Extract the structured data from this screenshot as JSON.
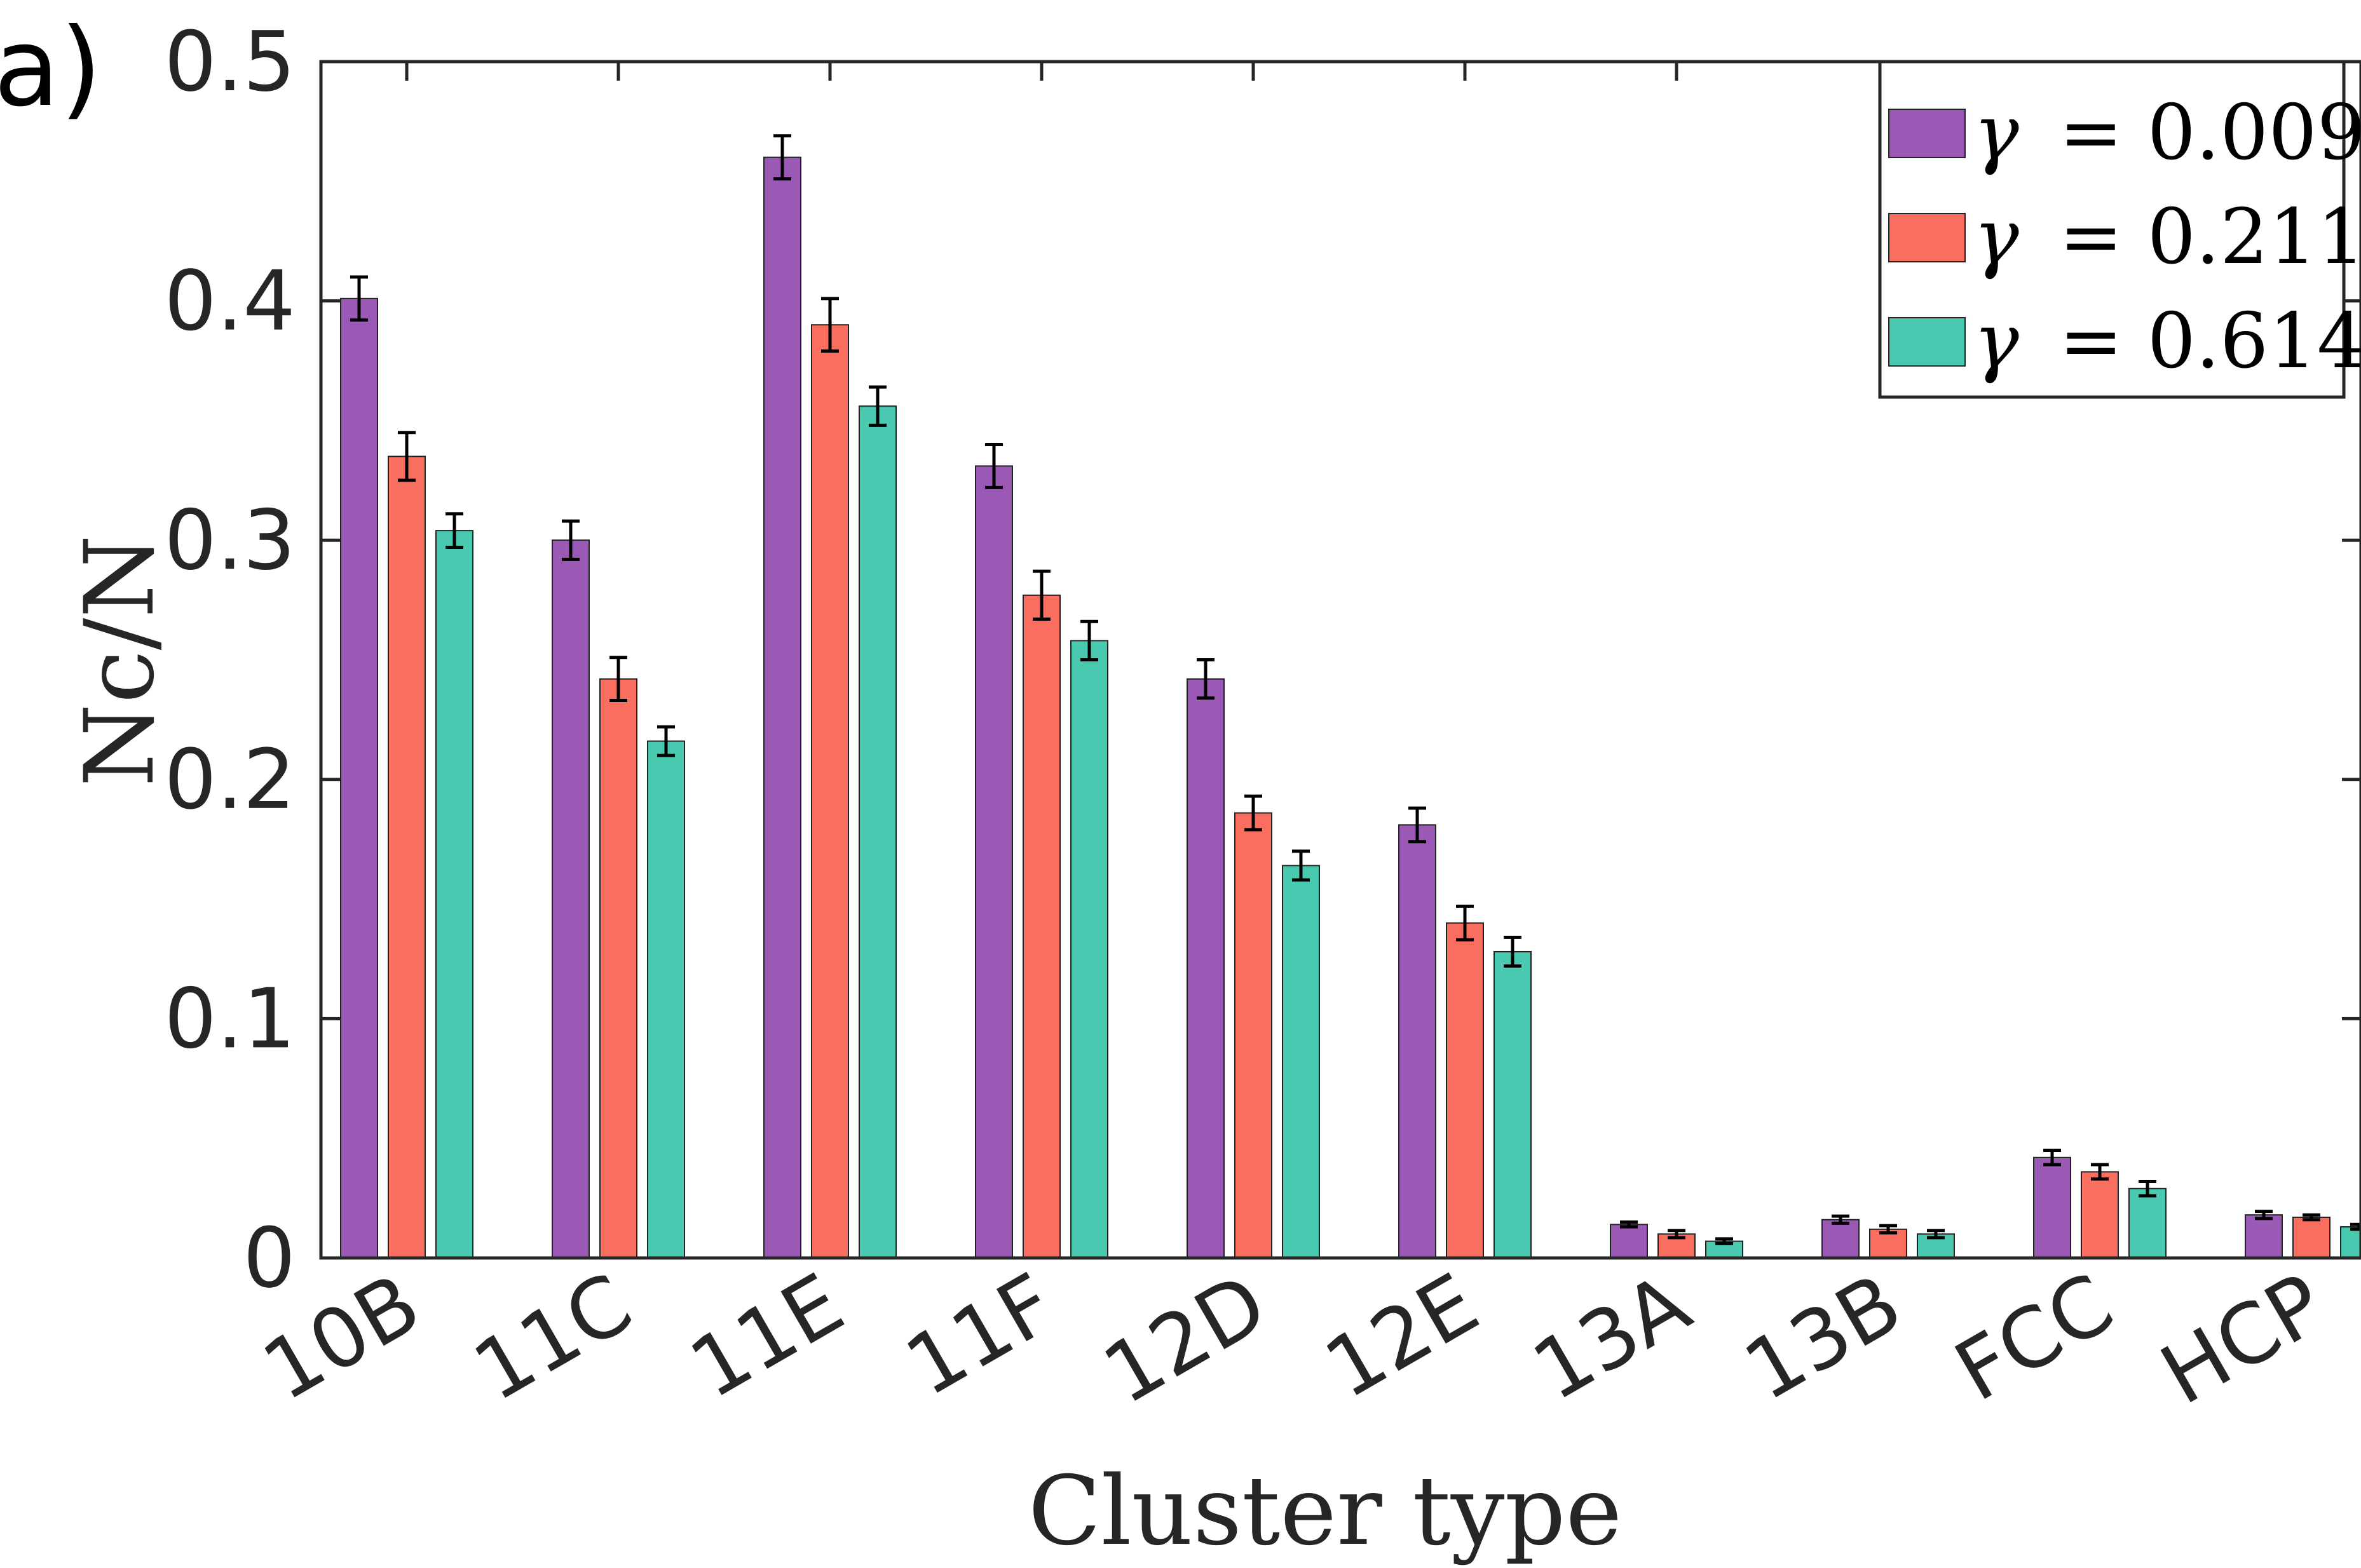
{
  "panel_label": "a)",
  "colors": {
    "series": [
      "#9b59b6",
      "#fa6e5f",
      "#48c9b0"
    ],
    "axis": "#262626",
    "errorbar": "#000000"
  },
  "chart_data": {
    "type": "bar",
    "title": "",
    "xlabel": "Cluster type",
    "ylabel": "Nc/N",
    "ylim": [
      0,
      0.5
    ],
    "yticks": [
      "0",
      "0.1",
      "0.2",
      "0.3",
      "0.4",
      "0.5"
    ],
    "ytick_values": [
      0,
      0.1,
      0.2,
      0.3,
      0.4,
      0.5
    ],
    "categories": [
      "10B",
      "11C",
      "11E",
      "11F",
      "12D",
      "12E",
      "13A",
      "13B",
      "FCC",
      "HCP"
    ],
    "legend_position": "top-right",
    "series": [
      {
        "name": "γ = 0.009",
        "symbol": "γ",
        "value_label": "= 0.009",
        "values": [
          0.401,
          0.3,
          0.46,
          0.331,
          0.242,
          0.181,
          0.014,
          0.016,
          0.042,
          0.018
        ],
        "errors": [
          0.009,
          0.008,
          0.009,
          0.009,
          0.008,
          0.007,
          0.001,
          0.0015,
          0.003,
          0.0015
        ]
      },
      {
        "name": "γ = 0.211",
        "symbol": "γ",
        "value_label": "= 0.211",
        "values": [
          0.335,
          0.242,
          0.39,
          0.277,
          0.186,
          0.14,
          0.01,
          0.012,
          0.036,
          0.017
        ],
        "errors": [
          0.01,
          0.009,
          0.011,
          0.01,
          0.007,
          0.007,
          0.0015,
          0.0015,
          0.003,
          0.001
        ]
      },
      {
        "name": "γ = 0.614",
        "symbol": "γ",
        "value_label": "= 0.614",
        "values": [
          0.304,
          0.216,
          0.356,
          0.258,
          0.164,
          0.128,
          0.007,
          0.01,
          0.029,
          0.013
        ],
        "errors": [
          0.007,
          0.006,
          0.008,
          0.008,
          0.006,
          0.006,
          0.001,
          0.0015,
          0.003,
          0.001
        ]
      }
    ]
  }
}
